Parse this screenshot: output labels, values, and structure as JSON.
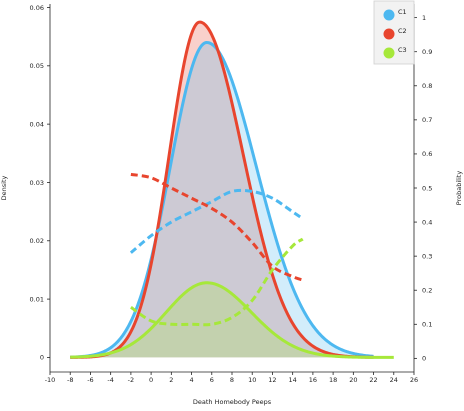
{
  "chart_data": {
    "type": "area",
    "title": "",
    "xlabel": "Death Homebody Peeps",
    "ylabel": "Density",
    "y2label": "Probability",
    "xlim": [
      -10,
      26
    ],
    "ylim": [
      -0.0025,
      0.0606
    ],
    "y2lim": [
      -0.04,
      1.04
    ],
    "x_ticks": [
      "-10",
      "-8",
      "-6",
      "-4",
      "-2",
      "0",
      "2",
      "4",
      "6",
      "8",
      "10",
      "12",
      "14",
      "16",
      "18",
      "20",
      "22",
      "24",
      "26"
    ],
    "y_ticks": [
      "0",
      "0.01",
      "0.02",
      "0.03",
      "0.04",
      "0.05",
      "0.06"
    ],
    "y2_ticks": [
      "0",
      "0.1",
      "0.2",
      "0.3",
      "0.4",
      "0.5",
      "0.6",
      "0.7",
      "0.8",
      "0.9",
      "1"
    ],
    "grid": false,
    "legend_position": "top-right",
    "series": [
      {
        "name": "C1",
        "color": "#4db8f0",
        "density": {
          "mean": 5.5,
          "std_left": 3.6,
          "std_right": 4.9,
          "peak": 0.054
        },
        "x": [
          -8,
          22
        ],
        "probability": {
          "x": [
            -2,
            0,
            2,
            4,
            6,
            8,
            10,
            12,
            14,
            15
          ],
          "y": [
            0.31,
            0.36,
            0.4,
            0.43,
            0.46,
            0.49,
            0.49,
            0.47,
            0.43,
            0.41
          ]
        }
      },
      {
        "name": "C2",
        "color": "#e8452e",
        "density": {
          "mean": 4.8,
          "std_left": 3.0,
          "std_right": 4.3,
          "peak": 0.0575
        },
        "x": [
          -8,
          22
        ],
        "probability": {
          "x": [
            -2,
            0,
            2,
            4,
            6,
            8,
            10,
            12,
            14,
            15
          ],
          "y": [
            0.54,
            0.53,
            0.5,
            0.47,
            0.44,
            0.4,
            0.34,
            0.27,
            0.24,
            0.23
          ]
        }
      },
      {
        "name": "C3",
        "color": "#a6e83a",
        "density": {
          "mean": 5.5,
          "std_left": 4.0,
          "std_right": 4.4,
          "peak": 0.0128
        },
        "x": [
          -8,
          24
        ],
        "probability": {
          "x": [
            -2,
            0,
            2,
            4,
            6,
            8,
            10,
            12,
            14,
            15
          ],
          "y": [
            0.15,
            0.11,
            0.1,
            0.1,
            0.1,
            0.12,
            0.17,
            0.26,
            0.33,
            0.35
          ]
        }
      }
    ]
  }
}
